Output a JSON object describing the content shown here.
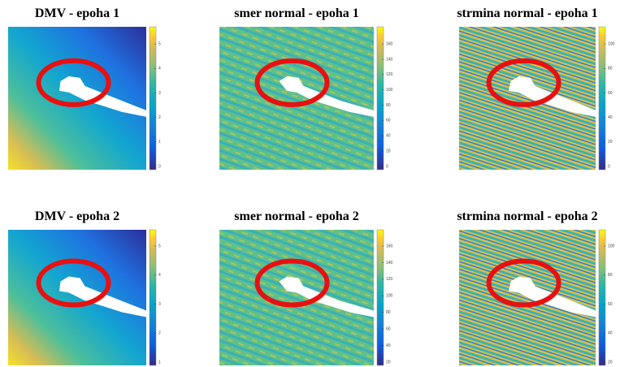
{
  "panels": [
    {
      "title": "DMV - epoha 1",
      "kind": "dmv",
      "colorbar_ticks": [
        5,
        4,
        3,
        2,
        1,
        0
      ]
    },
    {
      "title": "smer normal - epoha 1",
      "kind": "smer",
      "colorbar_ticks": [
        160,
        140,
        120,
        100,
        80,
        60,
        40,
        20,
        0
      ]
    },
    {
      "title": "strmina normal - epoha 1",
      "kind": "strmina",
      "colorbar_ticks": [
        100,
        80,
        60,
        40,
        20,
        0
      ]
    },
    {
      "title": "DMV - epoha 2",
      "kind": "dmv",
      "colorbar_ticks": [
        5,
        4,
        3,
        2,
        1
      ]
    },
    {
      "title": "smer normal - epoha 2",
      "kind": "smer",
      "colorbar_ticks": [
        160,
        140,
        120,
        100,
        80,
        60,
        40,
        20
      ]
    },
    {
      "title": "strmina normal - epoha 2",
      "kind": "strmina",
      "colorbar_ticks": [
        100,
        80,
        60,
        40,
        20
      ]
    }
  ]
}
